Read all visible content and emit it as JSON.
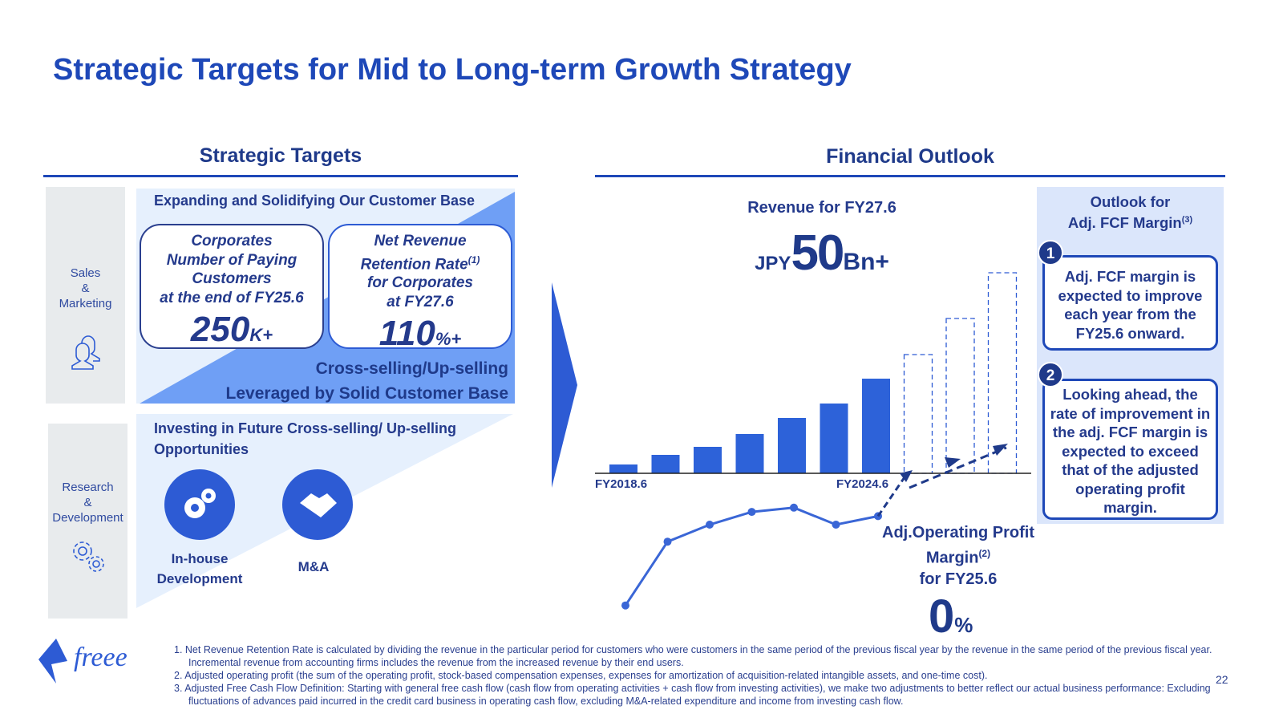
{
  "title": "Strategic Targets for Mid to Long-term Growth Strategy",
  "left": {
    "heading": "Strategic Targets",
    "sales_label": [
      "Sales",
      "&",
      "Marketing"
    ],
    "rd_label": [
      "Research",
      "&",
      "Development"
    ],
    "customer_base_heading": "Expanding and Solidifying Our Customer Base",
    "card1": {
      "lines": [
        "Corporates",
        "Number of Paying",
        "Customers",
        "at the end of FY25.6"
      ],
      "value": "250",
      "unit": "K+"
    },
    "card2": {
      "lines": [
        "Net Revenue",
        "Retention Rate",
        "for Corporates",
        "at FY27.6"
      ],
      "sup": "(1)",
      "value": "110",
      "unit": "%+"
    },
    "cross_sell": [
      "Cross-selling/Up-selling",
      "Leveraged by Solid Customer Base"
    ],
    "investing_heading": [
      "Investing in Future Cross-selling/ Up-selling",
      "Opportunities"
    ],
    "inhouse": [
      "In-house",
      "Development"
    ],
    "ma": "M&A"
  },
  "right": {
    "heading": "Financial Outlook",
    "revenue_label": "Revenue for FY27.6",
    "revenue_prefix": "JPY",
    "revenue_value": "50",
    "revenue_suffix": "Bn+",
    "margin_label": [
      "Adj.Operating Profit",
      "Margin",
      "for FY25.6"
    ],
    "margin_sup": "(2)",
    "margin_value": "0",
    "margin_unit": "%",
    "fcf_heading": [
      "Outlook for",
      "Adj. FCF Margin"
    ],
    "fcf_sup": "(3)",
    "point1_num": "1",
    "point1": "Adj. FCF margin is expected to improve each year from the FY25.6 onward.",
    "point2_num": "2",
    "point2": "Looking ahead, the rate of improvement in the adj. FCF margin is expected to exceed that of the adjusted operating profit margin."
  },
  "chart_data": {
    "type": "bar",
    "x_labels": [
      "FY2018.6",
      "FY2024.6"
    ],
    "revenue_actual": [
      2.2,
      4.6,
      6.6,
      9.8,
      13.8,
      17.4,
      23.6
    ],
    "revenue_forecast": [
      29.6,
      38.6,
      50
    ],
    "adj_op_margin_relative": [
      -19,
      -4,
      0,
      3,
      4,
      0,
      2
    ]
  },
  "footnotes": [
    "1. Net Revenue Retention Rate is calculated by dividing the revenue in the particular period for customers who were customers in the same period of the previous fiscal year by the revenue in the same period of the previous fiscal year. Incremental revenue from accounting firms includes the revenue from the increased revenue by their end users.",
    "2. Adjusted operating profit (the sum of the operating profit, stock-based compensation expenses, expenses for amortization of acquisition-related intangible assets, and one-time cost).",
    "3. Adjusted Free Cash Flow Definition: Starting with general free cash flow (cash flow from operating activities + cash flow from investing activities), we make two adjustments to better reflect our actual business performance: Excluding fluctuations of advances paid incurred in the credit card business in operating cash flow, excluding M&A-related expenditure and income from investing cash flow."
  ],
  "logo": "freee",
  "page": "22"
}
